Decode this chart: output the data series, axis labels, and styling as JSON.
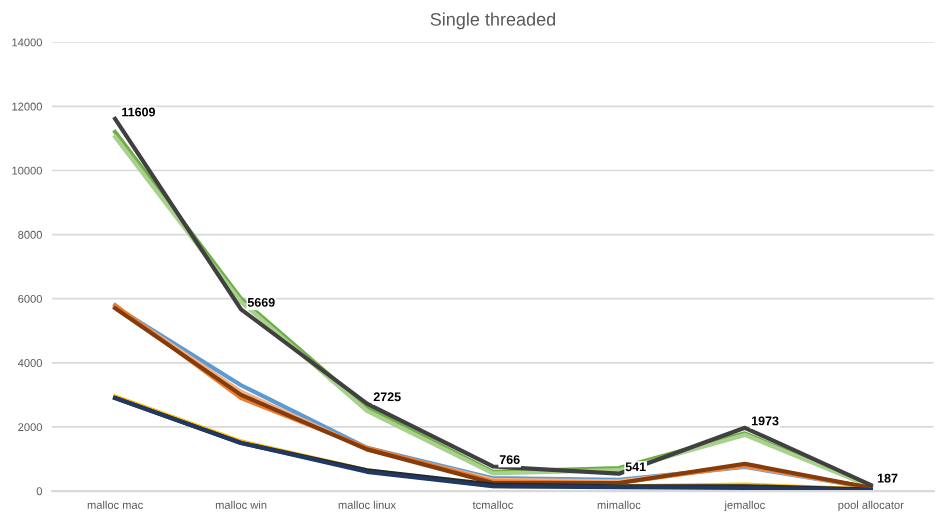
{
  "chart_data": {
    "type": "line",
    "title": "Single threaded",
    "categories": [
      "malloc mac",
      "malloc win",
      "malloc linux",
      "tcmalloc",
      "mimalloc",
      "jemalloc",
      "pool allocator"
    ],
    "series": [
      {
        "color": "#70ad47",
        "values": [
          11200,
          6000,
          2600,
          600,
          720,
          1800,
          150
        ]
      },
      {
        "color": "#a9d18e",
        "values": [
          11050,
          5900,
          2500,
          550,
          650,
          1750,
          140
        ]
      },
      {
        "color": "#5b9bd5",
        "values": [
          5750,
          3300,
          1350,
          400,
          350,
          750,
          100
        ]
      },
      {
        "color": "#f4b183",
        "values": [
          5750,
          3100,
          1300,
          350,
          300,
          780,
          100
        ]
      },
      {
        "color": "#ed7d31",
        "values": [
          5800,
          2900,
          1350,
          300,
          250,
          800,
          100
        ]
      },
      {
        "color": "#843c0c",
        "values": [
          5700,
          3000,
          1300,
          250,
          250,
          850,
          100
        ]
      },
      {
        "color": "#ffc000",
        "values": [
          2950,
          1550,
          650,
          150,
          150,
          200,
          50
        ]
      },
      {
        "color": "#262626",
        "values": [
          2900,
          1500,
          650,
          200,
          150,
          150,
          50
        ]
      },
      {
        "color": "#1f3864",
        "values": [
          2900,
          1500,
          600,
          150,
          120,
          100,
          30
        ]
      },
      {
        "color": "#404040",
        "values": [
          11609,
          5669,
          2725,
          766,
          541,
          1973,
          187
        ],
        "value_labels": [
          "11609",
          "5669",
          "2725",
          "766",
          "541",
          "1973",
          "187"
        ]
      }
    ],
    "ylim": [
      0,
      14000
    ],
    "yticks": [
      0,
      2000,
      4000,
      6000,
      8000,
      10000,
      12000,
      14000
    ],
    "grid": "y",
    "legend": false
  }
}
